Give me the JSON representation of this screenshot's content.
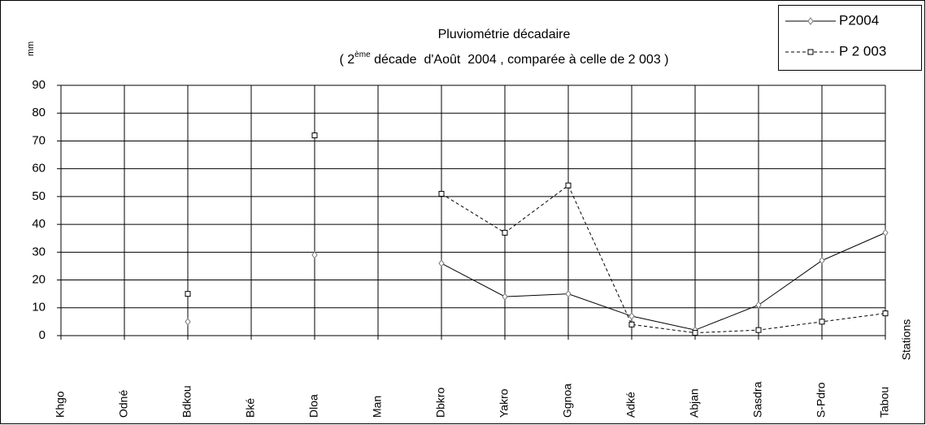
{
  "chart_data": {
    "type": "line",
    "title": "Pluviométrie décadaire",
    "subtitle": [
      "( 2",
      "ème",
      " décade  d'Août  2004 , comparée à celle de 2 003 )"
    ],
    "y_label": "mm",
    "x_label": "Stations",
    "categories": [
      "Khgo",
      "Odné",
      "Bdkou",
      "Bké",
      "Dloa",
      "Man",
      "Dbkro",
      "Yakro",
      "Ggnoa",
      "Adké",
      "Abjan",
      "Sasdra",
      "S-Pdro",
      "Tabou"
    ],
    "series": [
      {
        "name": "P2004",
        "color": "#000000",
        "marker": "diamond",
        "dashed": false,
        "values": [
          null,
          null,
          5,
          null,
          29,
          null,
          26,
          14,
          15,
          7,
          2,
          11,
          27,
          37
        ]
      },
      {
        "name": "P 2 003",
        "color": "#000000",
        "marker": "square",
        "dashed": true,
        "values": [
          null,
          null,
          15,
          null,
          72,
          null,
          51,
          37,
          54,
          4,
          1,
          2,
          5,
          8
        ]
      }
    ],
    "ylim": [
      0,
      90
    ],
    "yticks": [
      0,
      10,
      20,
      30,
      40,
      50,
      60,
      70,
      80,
      90
    ],
    "grid": true,
    "legend": "top-right"
  }
}
